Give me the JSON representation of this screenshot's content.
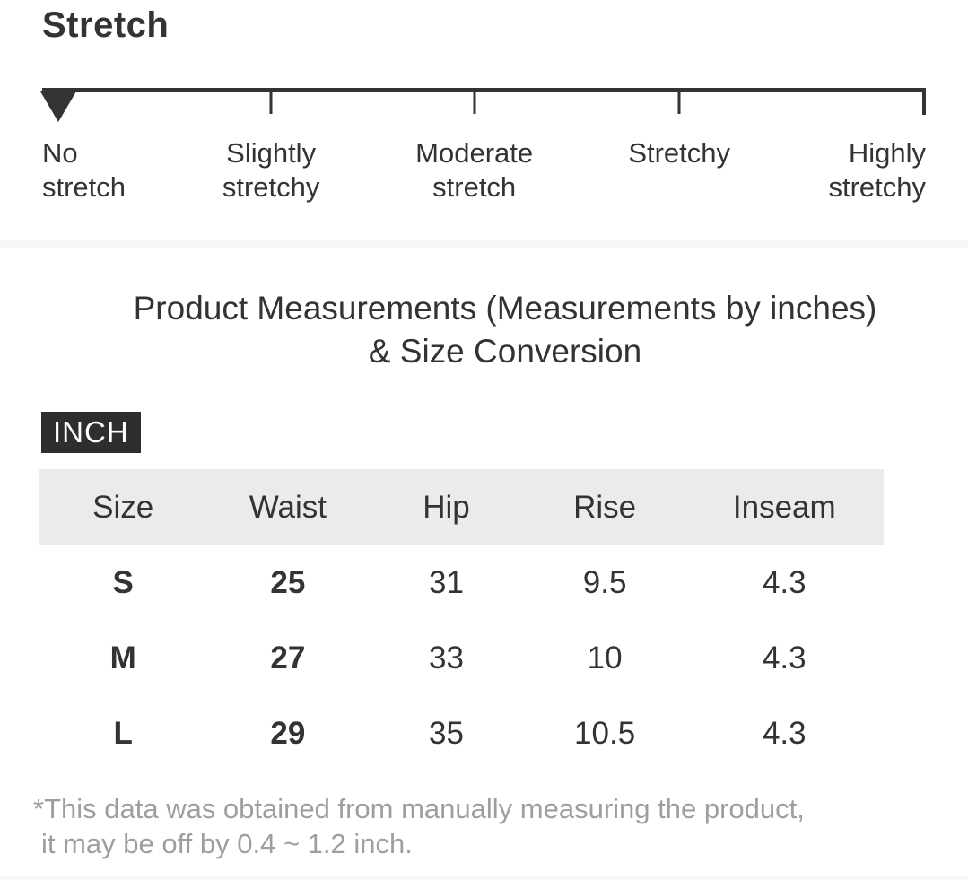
{
  "colors": {
    "text": "#333333",
    "muted_text": "#9e9e9e",
    "scale_line": "#333333",
    "divider": "#f7f7f7",
    "table_header_bg": "#ebebeb",
    "badge_bg": "#2e2e2e",
    "badge_text": "#ffffff"
  },
  "stretch": {
    "heading": "Stretch",
    "selected_level": "No stretch",
    "levels": [
      {
        "line1": "No",
        "line2": "stretch"
      },
      {
        "line1": "Slightly",
        "line2": "stretchy"
      },
      {
        "line1": "Moderate",
        "line2": "stretch"
      },
      {
        "line1": "Stretchy",
        "line2": ""
      },
      {
        "line1": "Highly",
        "line2": "stretchy"
      }
    ]
  },
  "measurements": {
    "title": "Product Measurements (Measurements by inches) & Size Conversion",
    "unit_badge": "INCH",
    "table": {
      "headers": [
        "Size",
        "Waist",
        "Hip",
        "Rise",
        "Inseam"
      ],
      "rows": [
        [
          "S",
          "25",
          "31",
          "9.5",
          "4.3"
        ],
        [
          "M",
          "27",
          "33",
          "10",
          "4.3"
        ],
        [
          "L",
          "29",
          "35",
          "10.5",
          "4.3"
        ]
      ]
    },
    "footnote_line1": "*This data was obtained from manually measuring the product,",
    "footnote_line2": "it may be off by 0.4 ~ 1.2 inch."
  }
}
